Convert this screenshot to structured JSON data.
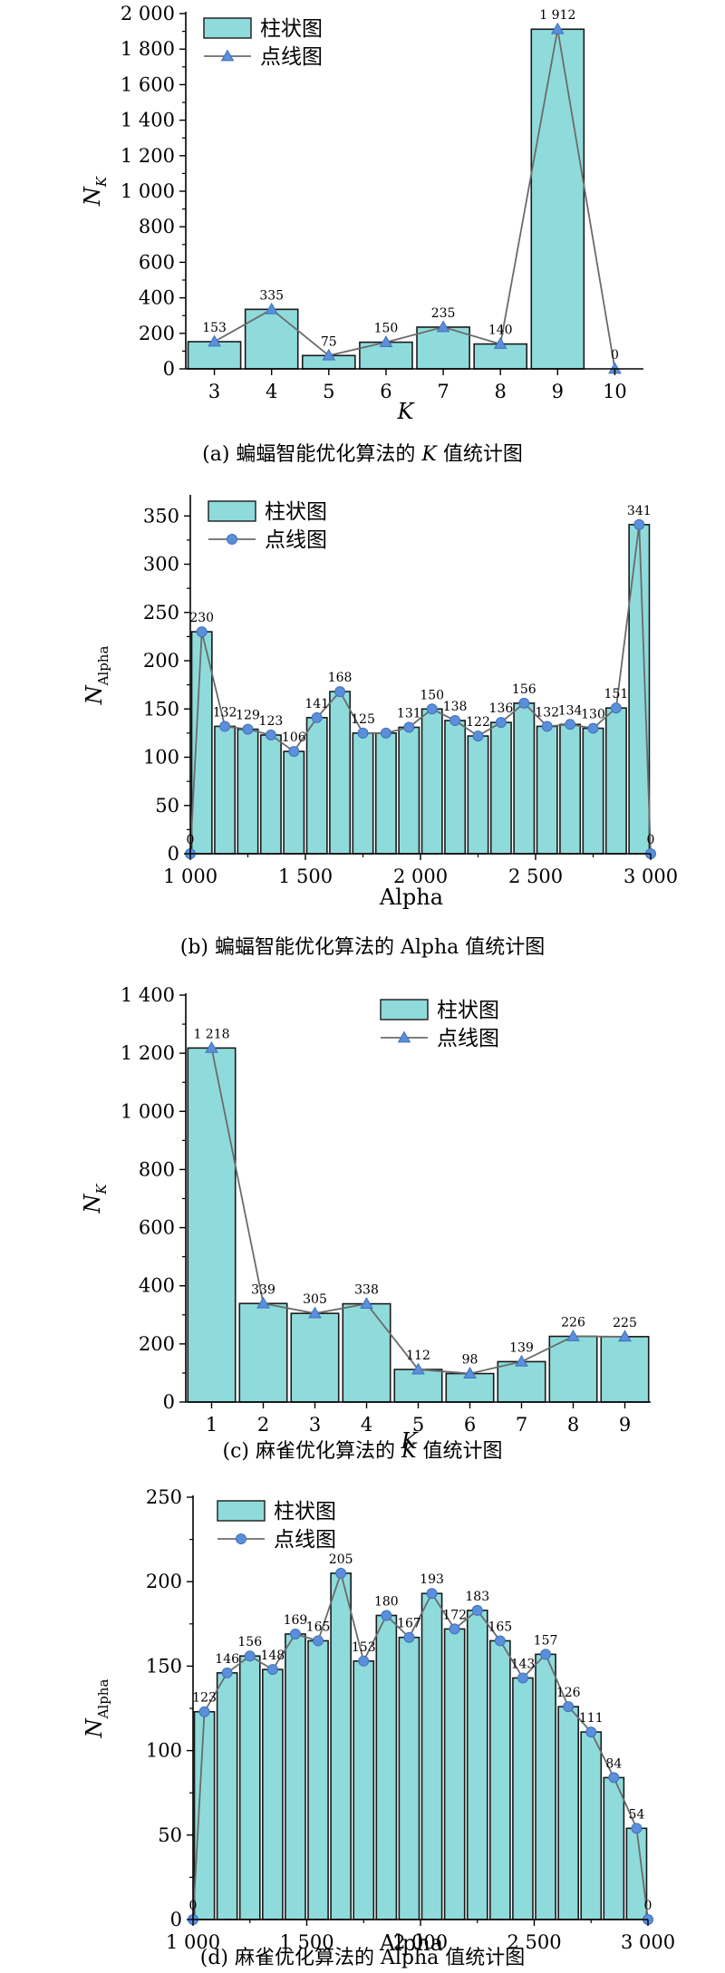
{
  "chart_data": [
    {
      "id": "a",
      "type": "bar",
      "overlay": "line",
      "line_marker": "triangle",
      "caption_parts": [
        "(a) 蝙蝠智能优化算法的 ",
        "K",
        " 值统计图"
      ],
      "xlabel": "K",
      "ylabel": "N",
      "ylabel_sub": "K",
      "ylabel_sub_italic": true,
      "ylim": [
        0,
        2000
      ],
      "yticks": [
        0,
        200,
        400,
        600,
        800,
        1000,
        1200,
        1400,
        1600,
        1800,
        2000
      ],
      "ytick_labels": [
        "0",
        "200",
        "400",
        "600",
        "800",
        "1 000",
        "1 200",
        "1 400",
        "1 600",
        "1 800",
        "2 000"
      ],
      "legend": [
        "柱状图",
        "点线图"
      ],
      "legend_position": "top-left",
      "categories": [
        "3",
        "4",
        "5",
        "6",
        "7",
        "8",
        "9",
        "10"
      ],
      "values": [
        153,
        335,
        75,
        150,
        235,
        140,
        1912,
        0
      ],
      "value_labels": [
        "153",
        "335",
        "75",
        "150",
        "235",
        "140",
        "1 912",
        "0"
      ]
    },
    {
      "id": "b",
      "type": "bar",
      "overlay": "line",
      "line_marker": "circle",
      "caption_parts": [
        "(b) 蝙蝠智能优化算法的 Alpha 值统计图"
      ],
      "xlabel": "Alpha",
      "ylabel": "N",
      "ylabel_sub": "Alpha",
      "ylabel_sub_italic": false,
      "ylim": [
        0,
        370
      ],
      "yticks": [
        0,
        50,
        100,
        150,
        200,
        250,
        300,
        350
      ],
      "ytick_labels": [
        "0",
        "50",
        "100",
        "150",
        "200",
        "250",
        "300",
        "350"
      ],
      "xlim": [
        1000,
        3000
      ],
      "xticks": [
        1000,
        1500,
        2000,
        2500,
        3000
      ],
      "xtick_labels": [
        "1 000",
        "1 500",
        "2 000",
        "2 500",
        "3 000"
      ],
      "legend": [
        "柱状图",
        "点线图"
      ],
      "legend_position": "top-left",
      "bar_x": [
        1050,
        1150,
        1250,
        1350,
        1450,
        1550,
        1650,
        1750,
        1850,
        1950,
        2050,
        2150,
        2250,
        2350,
        2450,
        2550,
        2650,
        2750,
        2850,
        2950
      ],
      "bar_values": [
        230,
        132,
        129,
        123,
        106,
        141,
        168,
        125,
        125,
        131,
        150,
        138,
        122,
        136,
        156,
        132,
        134,
        130,
        151,
        341
      ],
      "bar_value_labels": [
        "230",
        "132",
        "129",
        "123",
        "106",
        "141",
        "168",
        "125",
        "",
        "131",
        "150",
        "138",
        "122",
        "136",
        "156",
        "132",
        "134",
        "130",
        "151",
        "341"
      ],
      "end_points": [
        [
          1000,
          0
        ],
        [
          3000,
          0
        ]
      ],
      "end_labels": [
        "0",
        "0"
      ]
    },
    {
      "id": "c",
      "type": "bar",
      "overlay": "line",
      "line_marker": "triangle",
      "caption_parts": [
        "(c) 麻雀优化算法的 ",
        "K",
        " 值统计图"
      ],
      "xlabel": "K",
      "ylabel": "N",
      "ylabel_sub": "K",
      "ylabel_sub_italic": true,
      "ylim": [
        0,
        1400
      ],
      "yticks": [
        0,
        200,
        400,
        600,
        800,
        1000,
        1200,
        1400
      ],
      "ytick_labels": [
        "0",
        "200",
        "400",
        "600",
        "800",
        "1 000",
        "1 200",
        "1 400"
      ],
      "legend": [
        "柱状图",
        "点线图"
      ],
      "legend_position": "top-center",
      "categories": [
        "1",
        "2",
        "3",
        "4",
        "5",
        "6",
        "7",
        "8",
        "9"
      ],
      "values": [
        1218,
        339,
        305,
        338,
        112,
        98,
        139,
        226,
        225
      ],
      "value_labels": [
        "1 218",
        "339",
        "305",
        "338",
        "112",
        "98",
        "139",
        "226",
        "225"
      ]
    },
    {
      "id": "d",
      "type": "bar",
      "overlay": "line",
      "line_marker": "circle",
      "caption_parts": [
        "(d) 麻雀优化算法的 Alpha 值统计图"
      ],
      "xlabel": "Alpha",
      "ylabel": "N",
      "ylabel_sub": "Alpha",
      "ylabel_sub_italic": false,
      "ylim": [
        0,
        250
      ],
      "yticks": [
        0,
        50,
        100,
        150,
        200,
        250
      ],
      "ytick_labels": [
        "0",
        "50",
        "100",
        "150",
        "200",
        "250"
      ],
      "xlim": [
        1000,
        3000
      ],
      "xticks": [
        1000,
        1500,
        2000,
        2500,
        3000
      ],
      "xtick_labels": [
        "1 000",
        "1 500",
        "2 000",
        "2 500",
        "3 000"
      ],
      "legend": [
        "柱状图",
        "点线图"
      ],
      "legend_position": "top-left",
      "bar_x": [
        1050,
        1150,
        1250,
        1350,
        1450,
        1550,
        1650,
        1750,
        1850,
        1950,
        2050,
        2150,
        2250,
        2350,
        2450,
        2550,
        2650,
        2750,
        2850,
        2950
      ],
      "bar_values": [
        123,
        146,
        156,
        148,
        169,
        165,
        205,
        153,
        180,
        167,
        193,
        172,
        183,
        165,
        143,
        157,
        126,
        111,
        84,
        54
      ],
      "bar_value_labels": [
        "123",
        "146",
        "156",
        "148",
        "169",
        "165",
        "205",
        "153",
        "180",
        "167",
        "193",
        "172",
        "183",
        "165",
        "143",
        "157",
        "126",
        "111",
        "84",
        "54"
      ],
      "end_points": [
        [
          1000,
          0
        ],
        [
          3000,
          0
        ]
      ],
      "end_labels": [
        "0",
        "0"
      ]
    }
  ],
  "colors": {
    "bar_fill": "#8fdbdb",
    "bar_stroke": "#1a1a1a",
    "line_stroke": "#6b6b6b",
    "marker_fill": "#5b8fd9",
    "marker_stroke": "#3f72bf",
    "axis": "#000000"
  }
}
